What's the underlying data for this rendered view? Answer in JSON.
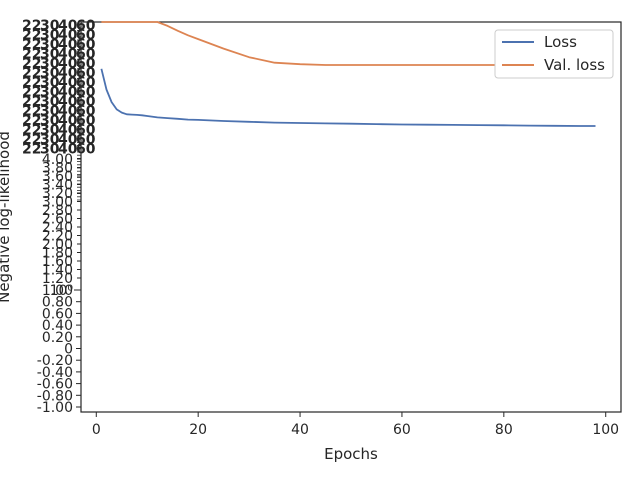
{
  "chart_data": {
    "type": "line",
    "title": "",
    "xlabel": "Epochs",
    "ylabel": "Negative log-likelihood",
    "xlim": [
      -3,
      103
    ],
    "x_ticks": [
      0,
      20,
      40,
      60,
      80,
      100
    ],
    "y_scale": "symlog",
    "y_ticks_linear": [
      "1.00",
      "0.80",
      "0.60",
      "0.40",
      "0.20",
      "0",
      "-0.20",
      "-0.40",
      "-0.60",
      "-0.80",
      "-1.00"
    ],
    "y_tick_decade": "10⁰",
    "y_ticks_minor_above": [
      "1.20",
      "1.40",
      "1.60",
      "1.80",
      "2.00",
      "2.20",
      "2.40",
      "2.60",
      "2.80",
      "3.00",
      "3.20",
      "3.40",
      "3.60",
      "3.80",
      "4.00"
    ],
    "grid": false,
    "legend_position": "top-right",
    "series": [
      {
        "name": "Loss",
        "color": "#4c72b0",
        "x": [
          1,
          2,
          3,
          4,
          5,
          6,
          7,
          8,
          9,
          10,
          12,
          14,
          16,
          18,
          20,
          25,
          30,
          35,
          40,
          45,
          50,
          55,
          60,
          65,
          70,
          75,
          80,
          85,
          90,
          95,
          98
        ],
        "y": [
          38,
          27,
          22,
          19.5,
          18.5,
          18,
          17.9,
          17.8,
          17.7,
          17.5,
          17.1,
          16.9,
          16.7,
          16.5,
          16.4,
          16.1,
          15.9,
          15.7,
          15.6,
          15.5,
          15.4,
          15.3,
          15.2,
          15.15,
          15.1,
          15.05,
          15.0,
          14.95,
          14.9,
          14.85,
          14.85
        ]
      },
      {
        "name": "Val. loss",
        "color": "#dd8452",
        "x": [
          1,
          2,
          3,
          4,
          5,
          6,
          7,
          8,
          9,
          10,
          12,
          14,
          16,
          18,
          20,
          25,
          30,
          35,
          40,
          45,
          50,
          55,
          60,
          65,
          70,
          75,
          80,
          85,
          90,
          95,
          98
        ],
        "y": [
          420,
          300,
          230,
          195,
          170,
          150,
          132,
          118,
          105,
          96,
          85,
          77,
          71,
          66,
          62,
          53,
          46,
          42,
          41,
          40.5,
          40.5,
          40.5,
          40.5,
          40.5,
          40.5,
          40.5,
          40.5,
          40.5,
          40.5,
          40.5,
          41
        ]
      }
    ]
  }
}
